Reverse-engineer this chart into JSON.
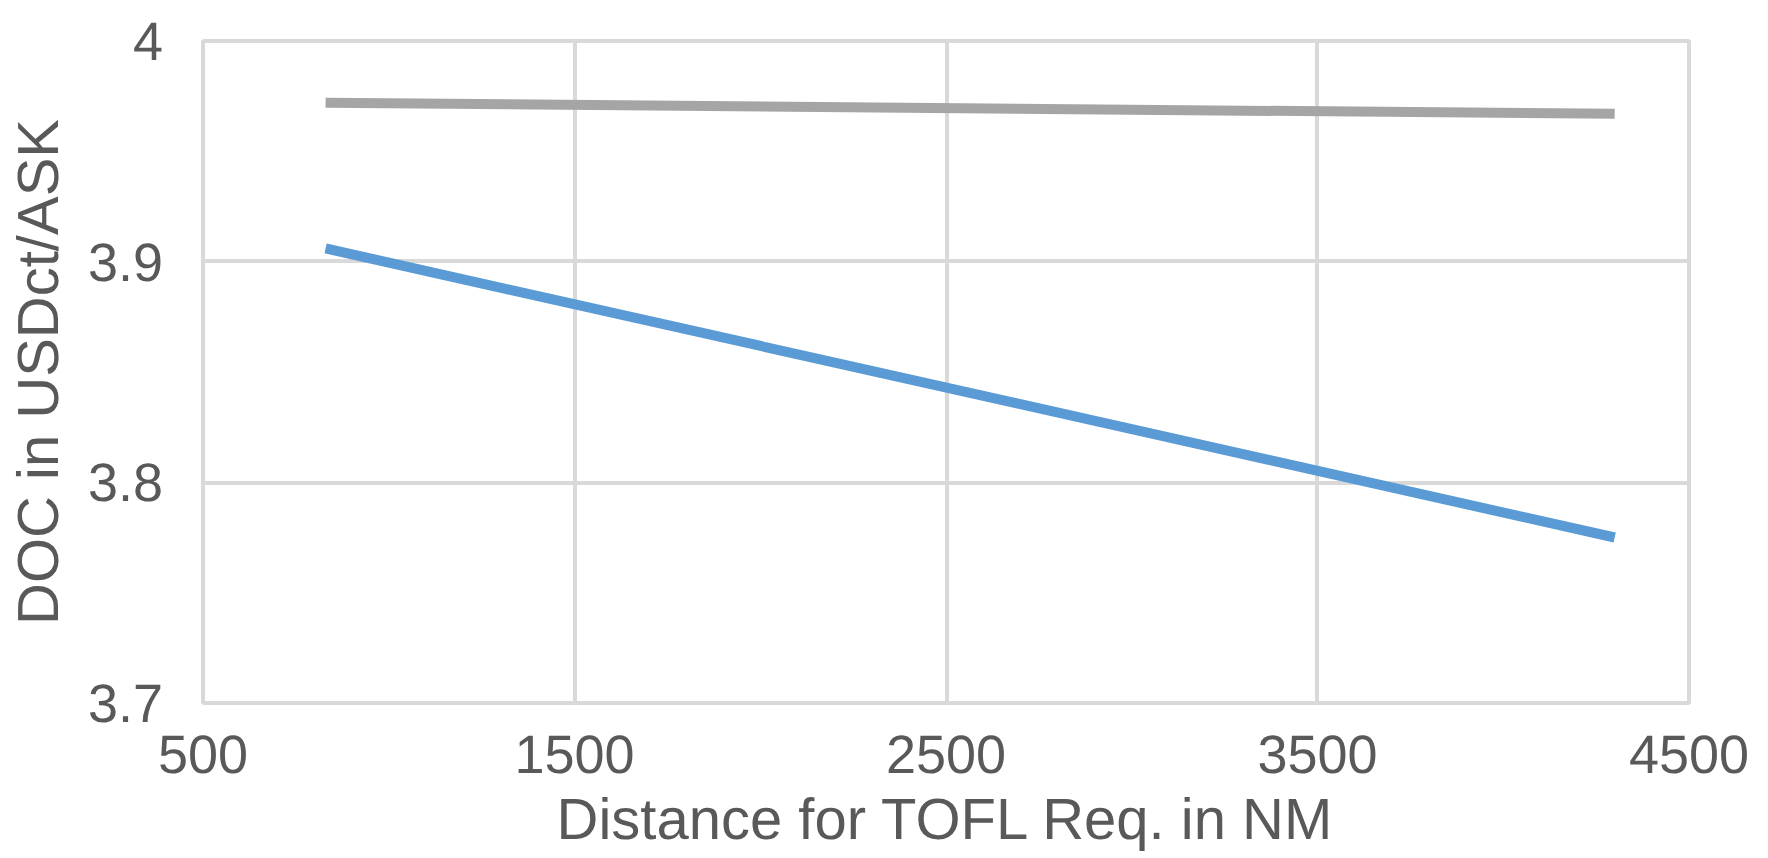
{
  "chart_data": {
    "type": "line",
    "xlabel": "Distance for TOFL Req. in NM",
    "ylabel": "DOC in USDct/ASK",
    "x": [
      830,
      4300
    ],
    "xlim": [
      500,
      4500
    ],
    "xticks": [
      500,
      1500,
      2500,
      3500,
      4500
    ],
    "ylim": [
      3.7,
      4
    ],
    "yticks": [
      3.7,
      3.8,
      3.9,
      {
        "value": 4,
        "label": "4"
      }
    ],
    "grid": true,
    "line_style": "solid",
    "marker": "none",
    "series": [
      {
        "color": "#a5a5a5",
        "values": [
          3.972,
          3.967
        ]
      },
      {
        "color": "#5b9bd5",
        "values": [
          3.906,
          3.775
        ]
      }
    ]
  }
}
